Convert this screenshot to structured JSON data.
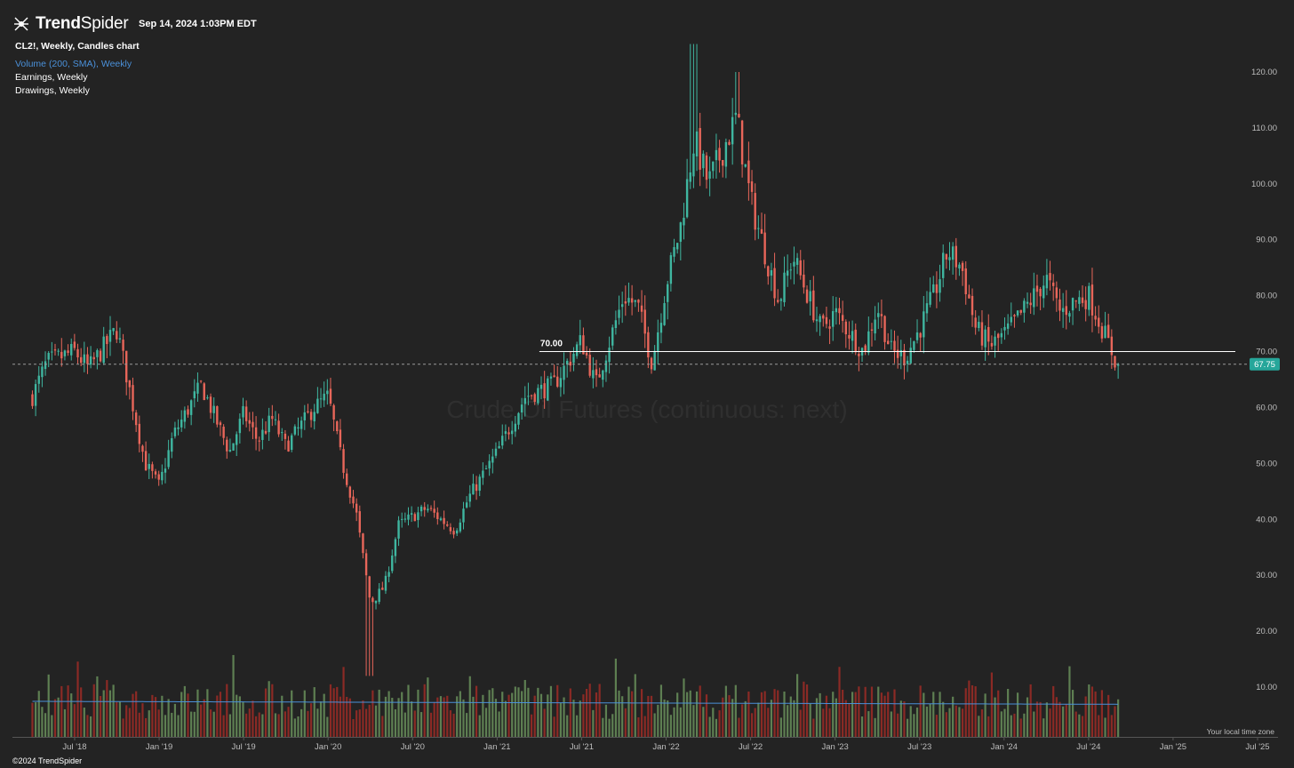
{
  "brand": {
    "name_bold": "Trend",
    "name_rest": "Spider",
    "datetime": "Sep 14, 2024 1:03PM EDT"
  },
  "info": {
    "title": "CL2!, Weekly, Candles chart",
    "volume": "Volume (200, SMA), Weekly",
    "earnings": "Earnings, Weekly",
    "drawings": "Drawings, Weekly"
  },
  "footer": {
    "copyright": "©2024 TrendSpider",
    "timezone": "Your local time zone"
  },
  "chart_data": {
    "type": "candlestick",
    "title": "CL2!, Weekly, Candles chart",
    "watermark": "Crude Oil Futures (continuous: next)",
    "x_range": [
      "2018-04",
      "2025-07"
    ],
    "x_ticks": [
      "Jul '18",
      "Jan '19",
      "Jul '19",
      "Jan '20",
      "Jul '20",
      "Jan '21",
      "Jul '21",
      "Jan '22",
      "Jul '22",
      "Jan '23",
      "Jul '23",
      "Jan '24",
      "Jul '24",
      "Jan '25",
      "Jul '25"
    ],
    "y_ticks": [
      "120.00",
      "110.00",
      "100.00",
      "90.00",
      "80.00",
      "70.00",
      "60.00",
      "50.00",
      "40.00",
      "30.00",
      "20.00",
      "10.00"
    ],
    "y_tick_values": [
      120,
      110,
      100,
      90,
      80,
      70,
      60,
      50,
      40,
      30,
      20,
      10
    ],
    "ylim": [
      4,
      126
    ],
    "last_price": {
      "value": 67.75,
      "label": "67.75"
    },
    "horizontal_line": {
      "value": 70.0,
      "label": "70.00",
      "start": "2021-04"
    },
    "colors": {
      "up": "#3fb6a0",
      "down": "#e8665a",
      "vol_up": "#5e7f52",
      "vol_down": "#8b2a25",
      "sma": "#4a90d9",
      "background": "#232323",
      "badge": "#26a69a"
    },
    "price_anchors": [
      {
        "t": "2018-04",
        "v": 62
      },
      {
        "t": "2018-05",
        "v": 68
      },
      {
        "t": "2018-07",
        "v": 70
      },
      {
        "t": "2018-08",
        "v": 67
      },
      {
        "t": "2018-10",
        "v": 74
      },
      {
        "t": "2018-12",
        "v": 50
      },
      {
        "t": "2019-01",
        "v": 46
      },
      {
        "t": "2019-02",
        "v": 55
      },
      {
        "t": "2019-04",
        "v": 64
      },
      {
        "t": "2019-06",
        "v": 52
      },
      {
        "t": "2019-07",
        "v": 59
      },
      {
        "t": "2019-08",
        "v": 54
      },
      {
        "t": "2019-09",
        "v": 58
      },
      {
        "t": "2019-10",
        "v": 53
      },
      {
        "t": "2019-12",
        "v": 60
      },
      {
        "t": "2020-01",
        "v": 62
      },
      {
        "t": "2020-02",
        "v": 50
      },
      {
        "t": "2020-03",
        "v": 41
      },
      {
        "t": "2020-04",
        "v": 25
      },
      {
        "t": "2020-05",
        "v": 28
      },
      {
        "t": "2020-06",
        "v": 39
      },
      {
        "t": "2020-08",
        "v": 42
      },
      {
        "t": "2020-10",
        "v": 38
      },
      {
        "t": "2020-11",
        "v": 44
      },
      {
        "t": "2020-12",
        "v": 48
      },
      {
        "t": "2021-01",
        "v": 52
      },
      {
        "t": "2021-03",
        "v": 62
      },
      {
        "t": "2021-05",
        "v": 64
      },
      {
        "t": "2021-07",
        "v": 72
      },
      {
        "t": "2021-08",
        "v": 64
      },
      {
        "t": "2021-10",
        "v": 80
      },
      {
        "t": "2021-11",
        "v": 78
      },
      {
        "t": "2021-12",
        "v": 68
      },
      {
        "t": "2022-01",
        "v": 82
      },
      {
        "t": "2022-02",
        "v": 92
      },
      {
        "t": "2022-03",
        "v": 108
      },
      {
        "t": "2022-04",
        "v": 100
      },
      {
        "t": "2022-06",
        "v": 112
      },
      {
        "t": "2022-07",
        "v": 97
      },
      {
        "t": "2022-08",
        "v": 88
      },
      {
        "t": "2022-09",
        "v": 79
      },
      {
        "t": "2022-10",
        "v": 87
      },
      {
        "t": "2022-12",
        "v": 74
      },
      {
        "t": "2023-01",
        "v": 77
      },
      {
        "t": "2023-03",
        "v": 70
      },
      {
        "t": "2023-04",
        "v": 78
      },
      {
        "t": "2023-05",
        "v": 70
      },
      {
        "t": "2023-06",
        "v": 69
      },
      {
        "t": "2023-07",
        "v": 74
      },
      {
        "t": "2023-08",
        "v": 80
      },
      {
        "t": "2023-09",
        "v": 88
      },
      {
        "t": "2023-10",
        "v": 85
      },
      {
        "t": "2023-11",
        "v": 74
      },
      {
        "t": "2023-12",
        "v": 71
      },
      {
        "t": "2024-01",
        "v": 73
      },
      {
        "t": "2024-02",
        "v": 76
      },
      {
        "t": "2024-04",
        "v": 83
      },
      {
        "t": "2024-05",
        "v": 77
      },
      {
        "t": "2024-06",
        "v": 79
      },
      {
        "t": "2024-07",
        "v": 80
      },
      {
        "t": "2024-08",
        "v": 74
      },
      {
        "t": "2024-09",
        "v": 67.75
      }
    ],
    "volume_sma_level_note": "approx"
  }
}
